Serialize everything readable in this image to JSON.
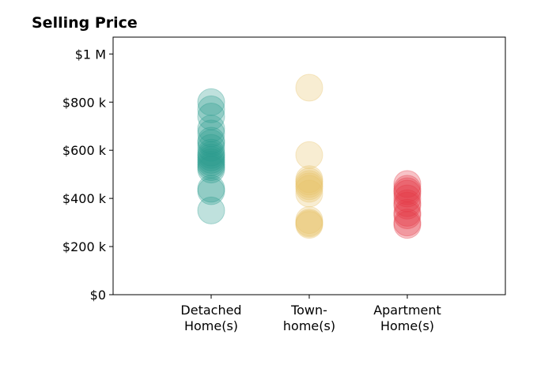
{
  "chart_data": {
    "type": "scatter",
    "title": "Selling Price",
    "xlabel": "",
    "ylabel": "",
    "ylim": [
      0,
      1070000
    ],
    "grid": false,
    "y_ticks": [
      {
        "value": 0,
        "label": "$0"
      },
      {
        "value": 200000,
        "label": "$200 k"
      },
      {
        "value": 400000,
        "label": "$400 k"
      },
      {
        "value": 600000,
        "label": "$600 k"
      },
      {
        "value": 800000,
        "label": "$800 k"
      },
      {
        "value": 1000000,
        "label": "$1 M"
      }
    ],
    "categories": [
      {
        "lines": [
          "Detached",
          "Home(s)"
        ]
      },
      {
        "lines": [
          "Town-",
          "home(s)"
        ]
      },
      {
        "lines": [
          "Apartment",
          "Home(s)"
        ]
      }
    ],
    "series": [
      {
        "category_index": 0,
        "color": "#2a9d8f",
        "values": [
          800000,
          770000,
          740000,
          690000,
          670000,
          640000,
          630000,
          610000,
          590000,
          580000,
          570000,
          560000,
          550000,
          540000,
          530000,
          520000,
          440000,
          430000,
          350000
        ]
      },
      {
        "category_index": 1,
        "color": "#e9c46a",
        "values": [
          860000,
          580000,
          480000,
          470000,
          460000,
          450000,
          440000,
          420000,
          310000,
          300000,
          295000,
          290000
        ]
      },
      {
        "category_index": 2,
        "color": "#e63946",
        "values": [
          460000,
          440000,
          430000,
          420000,
          400000,
          380000,
          370000,
          340000,
          330000,
          300000,
          290000
        ]
      }
    ]
  }
}
